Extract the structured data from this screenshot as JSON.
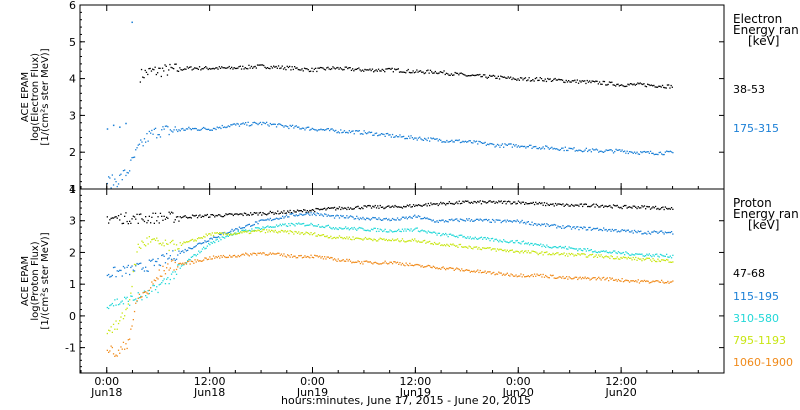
{
  "chart_data": [
    {
      "type": "scatter",
      "panel": "electron",
      "ylabel_lines": [
        "ACE EPAM",
        "log(Electron Flux)",
        "[1/(cm²s ster MeV)]"
      ],
      "ylim": [
        1,
        6
      ],
      "yticks": [
        "1",
        "2",
        "3",
        "4",
        "5",
        "6"
      ],
      "legend_title": [
        "Electron",
        "Energy ran",
        "[keV]"
      ],
      "series": [
        {
          "name": "38-53",
          "color": "#000000",
          "x": [
            0.16,
            0.2,
            0.3,
            0.4,
            0.5,
            0.6,
            0.75,
            0.9,
            1.0,
            1.1,
            1.25,
            1.4,
            1.5,
            1.6,
            1.75,
            1.9,
            2.0,
            2.1,
            2.25,
            2.4,
            2.5,
            2.6,
            2.75
          ],
          "y": [
            4.1,
            4.2,
            4.25,
            4.3,
            4.3,
            4.3,
            4.35,
            4.3,
            4.25,
            4.3,
            4.25,
            4.25,
            4.2,
            4.2,
            4.1,
            4.05,
            4.0,
            4.0,
            3.95,
            3.9,
            3.85,
            3.85,
            3.8
          ]
        },
        {
          "name": "175-315",
          "color": "#1a7fd6",
          "x": [
            0.0,
            0.05,
            0.1,
            0.15,
            0.2,
            0.25,
            0.3,
            0.4,
            0.5,
            0.6,
            0.75,
            0.9,
            1.0,
            1.1,
            1.25,
            1.4,
            1.5,
            1.6,
            1.75,
            1.9,
            2.0,
            2.1,
            2.25,
            2.4,
            2.5,
            2.6,
            2.75
          ],
          "y": [
            1.2,
            1.25,
            1.5,
            2.1,
            2.45,
            2.6,
            2.6,
            2.65,
            2.65,
            2.75,
            2.8,
            2.7,
            2.65,
            2.6,
            2.55,
            2.45,
            2.4,
            2.35,
            2.3,
            2.2,
            2.2,
            2.15,
            2.1,
            2.05,
            2.05,
            2.0,
            2.0
          ]
        }
      ],
      "scattered": [
        {
          "x": 0.12,
          "y": 5.55
        },
        {
          "x": 0.0,
          "y": 2.65
        },
        {
          "x": 0.03,
          "y": 2.75
        },
        {
          "x": 0.06,
          "y": 2.7
        },
        {
          "x": 0.09,
          "y": 2.8
        }
      ]
    },
    {
      "type": "scatter",
      "panel": "proton",
      "ylabel_lines": [
        "ACE EPAM",
        "log(Proton Flux)",
        "[1/(cm²s ster MeV)]"
      ],
      "ylim": [
        -1.8,
        4.0
      ],
      "yticks": [
        "-1",
        "0",
        "1",
        "2",
        "3",
        "4"
      ],
      "legend_title": [
        "Proton",
        "Energy ran",
        "[keV]"
      ],
      "series": [
        {
          "name": "47-68",
          "color": "#000000",
          "x": [
            0.0,
            0.2,
            0.4,
            0.6,
            0.75,
            0.9,
            1.0,
            1.1,
            1.25,
            1.4,
            1.5,
            1.6,
            1.75,
            1.9,
            2.0,
            2.1,
            2.25,
            2.4,
            2.5,
            2.6,
            2.75
          ],
          "y": [
            3.1,
            3.1,
            3.15,
            3.2,
            3.25,
            3.3,
            3.35,
            3.4,
            3.45,
            3.45,
            3.5,
            3.55,
            3.6,
            3.6,
            3.6,
            3.55,
            3.5,
            3.5,
            3.45,
            3.45,
            3.4
          ]
        },
        {
          "name": "115-195",
          "color": "#1a7fd6",
          "x": [
            0.0,
            0.1,
            0.2,
            0.3,
            0.4,
            0.5,
            0.6,
            0.75,
            0.9,
            1.0,
            1.1,
            1.25,
            1.4,
            1.5,
            1.6,
            1.75,
            1.9,
            2.0,
            2.1,
            2.25,
            2.4,
            2.5,
            2.6,
            2.75
          ],
          "y": [
            1.35,
            1.45,
            1.6,
            1.85,
            2.15,
            2.45,
            2.7,
            3.0,
            3.2,
            3.25,
            3.15,
            3.1,
            3.05,
            3.15,
            3.0,
            3.05,
            3.0,
            3.0,
            2.9,
            2.8,
            2.75,
            2.7,
            2.65,
            2.65
          ]
        },
        {
          "name": "310-580",
          "color": "#22d8d8",
          "x": [
            0.0,
            0.1,
            0.2,
            0.3,
            0.4,
            0.5,
            0.6,
            0.75,
            0.9,
            1.0,
            1.1,
            1.25,
            1.4,
            1.5,
            1.6,
            1.75,
            1.9,
            2.0,
            2.1,
            2.25,
            2.4,
            2.5,
            2.6,
            2.75
          ],
          "y": [
            0.4,
            0.5,
            0.7,
            1.2,
            1.8,
            2.3,
            2.6,
            2.8,
            2.9,
            2.9,
            2.8,
            2.75,
            2.7,
            2.75,
            2.6,
            2.5,
            2.4,
            2.35,
            2.25,
            2.15,
            2.05,
            2.0,
            1.95,
            1.9
          ]
        },
        {
          "name": "795-1193",
          "color": "#c8e612",
          "x": [
            0.0,
            0.05,
            0.1,
            0.15,
            0.2,
            0.25,
            0.3,
            0.4,
            0.5,
            0.6,
            0.75,
            0.9,
            1.0,
            1.1,
            1.25,
            1.4,
            1.5,
            1.6,
            1.75,
            1.9,
            2.0,
            2.1,
            2.25,
            2.4,
            2.5,
            2.6,
            2.75
          ],
          "y": [
            -0.4,
            -0.3,
            0.3,
            2.2,
            2.4,
            2.3,
            2.2,
            2.35,
            2.6,
            2.6,
            2.7,
            2.65,
            2.6,
            2.5,
            2.45,
            2.4,
            2.4,
            2.3,
            2.2,
            2.1,
            2.05,
            2.0,
            1.95,
            1.9,
            1.85,
            1.8,
            1.75
          ]
        },
        {
          "name": "1060-1900",
          "color": "#f08a1a",
          "x": [
            0.0,
            0.05,
            0.1,
            0.15,
            0.2,
            0.25,
            0.3,
            0.4,
            0.5,
            0.6,
            0.75,
            0.9,
            1.0,
            1.1,
            1.25,
            1.4,
            1.5,
            1.6,
            1.75,
            1.9,
            2.0,
            2.1,
            2.25,
            2.4,
            2.5,
            2.6,
            2.75
          ],
          "y": [
            -1.0,
            -1.2,
            -0.8,
            0.6,
            0.8,
            1.3,
            1.6,
            1.7,
            1.85,
            1.9,
            2.0,
            1.9,
            1.9,
            1.8,
            1.7,
            1.7,
            1.6,
            1.55,
            1.45,
            1.35,
            1.3,
            1.3,
            1.2,
            1.2,
            1.15,
            1.1,
            1.1
          ]
        }
      ]
    }
  ],
  "x_axis": {
    "ticks": [
      {
        "x": 0.0,
        "time": "0:00",
        "date": "Jun18"
      },
      {
        "x": 0.5,
        "time": "12:00",
        "date": "Jun18"
      },
      {
        "x": 1.0,
        "time": "0:00",
        "date": "Jun19"
      },
      {
        "x": 1.5,
        "time": "12:00",
        "date": "Jun19"
      },
      {
        "x": 2.0,
        "time": "0:00",
        "date": "Jun20"
      },
      {
        "x": 2.5,
        "time": "12:00",
        "date": "Jun20"
      }
    ],
    "xlim": [
      -0.13,
      3.0
    ],
    "label": "hours:minutes, June 17, 2015 - June 20, 2015"
  }
}
